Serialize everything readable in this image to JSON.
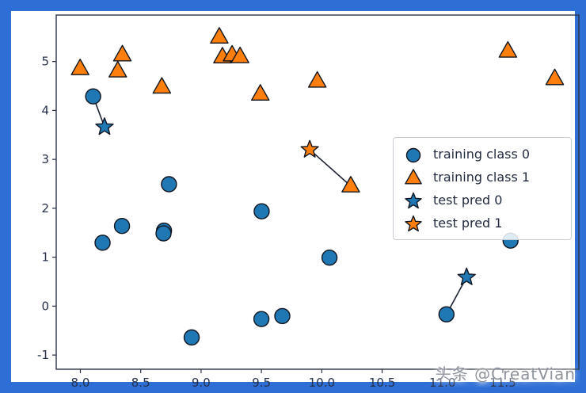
{
  "frame": {
    "color": "#2e6fd6"
  },
  "watermark": {
    "text": "头条 @CreatVian"
  },
  "chart_data": {
    "type": "scatter",
    "title": "",
    "xlabel": "",
    "ylabel": "",
    "xlim": [
      7.8,
      12.13
    ],
    "ylim": [
      -1.29,
      5.95
    ],
    "grid": false,
    "legend_position": "center right",
    "x_ticks": [
      8.0,
      8.5,
      9.0,
      9.5,
      10.0,
      10.5,
      11.0,
      11.5
    ],
    "x_tick_labels": [
      "8.0",
      "8.5",
      "9.0",
      "9.5",
      "10.0",
      "10.5",
      "11.0",
      "11.5"
    ],
    "y_ticks": [
      -1,
      0,
      1,
      2,
      3,
      4,
      5
    ],
    "y_tick_labels": [
      "-1",
      "0",
      "1",
      "2",
      "3",
      "4",
      "5"
    ],
    "series": [
      {
        "name": "training class 0",
        "marker": "circle",
        "color": "#1f77b4",
        "points": [
          [
            11.033,
            -0.168
          ],
          [
            8.693,
            1.543
          ],
          [
            8.106,
            4.287
          ],
          [
            9.673,
            -0.203
          ],
          [
            8.689,
            1.487
          ],
          [
            8.922,
            -0.64
          ],
          [
            8.184,
            1.296
          ],
          [
            8.734,
            2.492
          ],
          [
            10.064,
            0.991
          ],
          [
            9.5,
            -0.264
          ],
          [
            8.345,
            1.638
          ],
          [
            9.502,
            1.938
          ],
          [
            11.564,
            1.339
          ]
        ]
      },
      {
        "name": "training class 1",
        "marker": "triangle",
        "color": "#ff7f0e",
        "points": [
          [
            9.963,
            4.597
          ],
          [
            11.542,
            5.211
          ],
          [
            8.31,
            4.806
          ],
          [
            11.93,
            4.649
          ],
          [
            8.348,
            5.134
          ],
          [
            8.675,
            4.476
          ],
          [
            9.177,
            5.093
          ],
          [
            10.24,
            2.455
          ],
          [
            9.491,
            4.332
          ],
          [
            9.257,
            5.133
          ],
          [
            7.998,
            4.853
          ],
          [
            9.323,
            5.098
          ],
          [
            9.151,
            5.498
          ]
        ]
      },
      {
        "name": "test pred 0",
        "marker": "star",
        "color": "#1f77b4",
        "points": [
          [
            8.2,
            3.662
          ],
          [
            11.2,
            0.59
          ]
        ]
      },
      {
        "name": "test pred 1",
        "marker": "star",
        "color": "#ff7f0e",
        "points": [
          [
            9.9,
            3.2
          ]
        ]
      }
    ],
    "connections": [
      {
        "from": [
          8.2,
          3.662
        ],
        "to": [
          8.106,
          4.287
        ]
      },
      {
        "from": [
          9.9,
          3.2
        ],
        "to": [
          10.24,
          2.455
        ]
      },
      {
        "from": [
          11.2,
          0.59
        ],
        "to": [
          11.033,
          -0.168
        ]
      }
    ],
    "legend": [
      {
        "label": "training class 0",
        "marker": "circle",
        "color": "#1f77b4"
      },
      {
        "label": "training class 1",
        "marker": "triangle",
        "color": "#ff7f0e"
      },
      {
        "label": "test pred 0",
        "marker": "star",
        "color": "#1f77b4"
      },
      {
        "label": "test pred 1",
        "marker": "star",
        "color": "#ff7f0e"
      }
    ]
  }
}
